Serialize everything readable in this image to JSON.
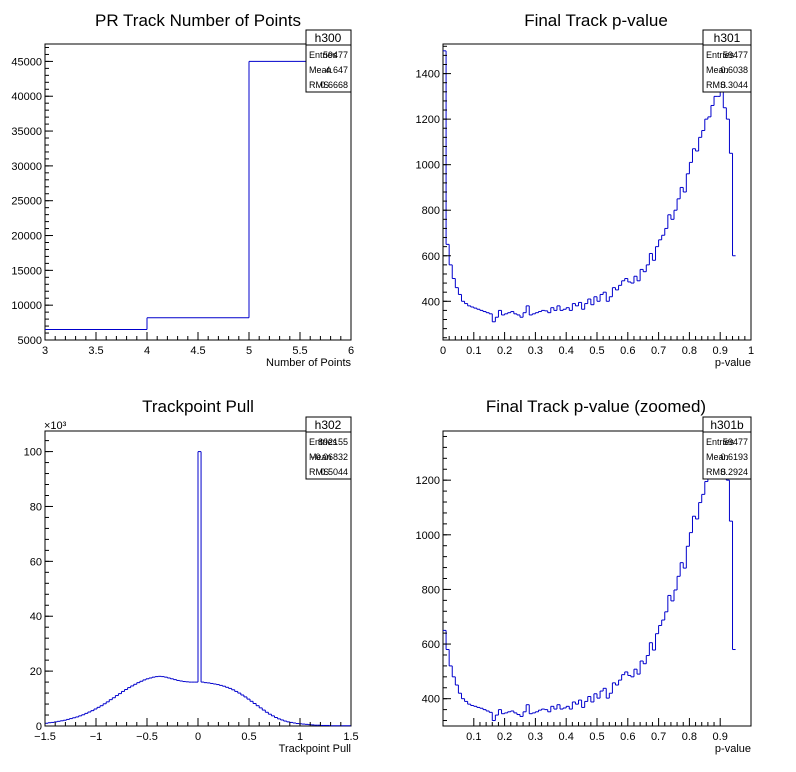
{
  "chart_data": [
    {
      "id": "h300",
      "type": "histogram",
      "title": "PR Track Number of Points",
      "xlabel": "Number of Points",
      "ylabel": "",
      "xlim": [
        3,
        6
      ],
      "ylim": [
        5000,
        47500
      ],
      "xticks": [
        {
          "v": 3,
          "t": "3"
        },
        {
          "v": 3.5,
          "t": "3.5"
        },
        {
          "v": 4,
          "t": "4"
        },
        {
          "v": 4.5,
          "t": "4.5"
        },
        {
          "v": 5,
          "t": "5"
        },
        {
          "v": 5.5,
          "t": "5.5"
        },
        {
          "v": 6,
          "t": "6"
        }
      ],
      "yticks": [
        {
          "v": 5000,
          "t": "5000"
        },
        {
          "v": 10000,
          "t": "10000"
        },
        {
          "v": 15000,
          "t": "15000"
        },
        {
          "v": 20000,
          "t": "20000"
        },
        {
          "v": 25000,
          "t": "25000"
        },
        {
          "v": 30000,
          "t": "30000"
        },
        {
          "v": 35000,
          "t": "35000"
        },
        {
          "v": 40000,
          "t": "40000"
        },
        {
          "v": 45000,
          "t": "45000"
        }
      ],
      "bin_edges": [
        3,
        4,
        5,
        6
      ],
      "values": [
        6500,
        8200,
        45000
      ],
      "stats": {
        "name": "h300",
        "entries": "59477",
        "mean": "4.647",
        "rms": "0.6668"
      },
      "exponent": "",
      "color": "#0000cc"
    },
    {
      "id": "h301",
      "type": "histogram",
      "title": "Final Track p-value",
      "xlabel": "p-value",
      "ylabel": "",
      "xlim": [
        0,
        1
      ],
      "ylim": [
        230,
        1530
      ],
      "xticks": [
        {
          "v": 0,
          "t": "0"
        },
        {
          "v": 0.1,
          "t": "0.1"
        },
        {
          "v": 0.2,
          "t": "0.2"
        },
        {
          "v": 0.3,
          "t": "0.3"
        },
        {
          "v": 0.4,
          "t": "0.4"
        },
        {
          "v": 0.5,
          "t": "0.5"
        },
        {
          "v": 0.6,
          "t": "0.6"
        },
        {
          "v": 0.7,
          "t": "0.7"
        },
        {
          "v": 0.8,
          "t": "0.8"
        },
        {
          "v": 0.9,
          "t": "0.9"
        },
        {
          "v": 1,
          "t": "1"
        }
      ],
      "yticks": [
        {
          "v": 400,
          "t": "400"
        },
        {
          "v": 600,
          "t": "600"
        },
        {
          "v": 800,
          "t": "800"
        },
        {
          "v": 1000,
          "t": "1000"
        },
        {
          "v": 1200,
          "t": "1200"
        },
        {
          "v": 1400,
          "t": "1400"
        }
      ],
      "bin_start": 0,
      "bin_width": 0.01,
      "values": [
        1500,
        650,
        560,
        500,
        460,
        430,
        400,
        390,
        380,
        375,
        370,
        365,
        360,
        355,
        350,
        345,
        310,
        330,
        360,
        340,
        345,
        350,
        355,
        345,
        340,
        330,
        350,
        380,
        340,
        345,
        350,
        355,
        360,
        358,
        350,
        372,
        360,
        380,
        360,
        365,
        372,
        360,
        390,
        380,
        395,
        365,
        390,
        410,
        385,
        420,
        400,
        430,
        440,
        400,
        420,
        460,
        450,
        470,
        490,
        500,
        485,
        480,
        510,
        490,
        540,
        530,
        560,
        610,
        580,
        640,
        670,
        690,
        720,
        780,
        760,
        800,
        850,
        900,
        880,
        960,
        1010,
        1070,
        1060,
        1120,
        1150,
        1200,
        1210,
        1260,
        1300,
        1300,
        1350,
        1250,
        1200,
        1050,
        600
      ],
      "stats": {
        "name": "h301",
        "entries": "59477",
        "mean": "0.6038",
        "rms": "0.3044"
      },
      "exponent": "",
      "color": "#0000cc"
    },
    {
      "id": "h302",
      "type": "histogram",
      "title": "Trackpoint Pull",
      "xlabel": "Trackpoint Pull",
      "ylabel": "",
      "xlim": [
        -1.5,
        1.5
      ],
      "ylim": [
        0,
        107.5
      ],
      "xticks": [
        {
          "v": -1.5,
          "t": "−1.5"
        },
        {
          "v": -1,
          "t": "−1"
        },
        {
          "v": -0.5,
          "t": "−0.5"
        },
        {
          "v": 0,
          "t": "0"
        },
        {
          "v": 0.5,
          "t": "0.5"
        },
        {
          "v": 1,
          "t": "1"
        },
        {
          "v": 1.5,
          "t": "1.5"
        }
      ],
      "yticks": [
        {
          "v": 0,
          "t": "0"
        },
        {
          "v": 20,
          "t": "20"
        },
        {
          "v": 40,
          "t": "40"
        },
        {
          "v": 60,
          "t": "60"
        },
        {
          "v": 80,
          "t": "80"
        },
        {
          "v": 100,
          "t": "100"
        }
      ],
      "bin_start": -1.5,
      "bin_width": 0.03,
      "values": [
        1.0,
        1.2,
        1.3,
        1.5,
        1.7,
        1.9,
        2.1,
        2.4,
        2.7,
        3.0,
        3.3,
        3.7,
        4.1,
        4.6,
        5.1,
        5.6,
        6.2,
        6.8,
        7.4,
        8.1,
        8.8,
        9.6,
        10.3,
        11.1,
        11.8,
        12.6,
        13.3,
        14.0,
        14.6,
        15.2,
        15.8,
        16.3,
        16.8,
        17.2,
        17.5,
        17.8,
        18.0,
        18.1,
        18.0,
        17.8,
        17.5,
        17.2,
        16.9,
        16.6,
        16.4,
        16.2,
        16.1,
        16.0,
        16.0,
        16.0,
        100.0,
        16.0,
        15.8,
        15.7,
        15.5,
        15.3,
        15.1,
        14.8,
        14.5,
        14.1,
        13.7,
        13.2,
        12.6,
        12.0,
        11.3,
        10.6,
        9.8,
        9.0,
        8.2,
        7.4,
        6.6,
        5.8,
        5.0,
        4.3,
        3.7,
        3.1,
        2.6,
        2.2,
        1.8,
        1.5,
        1.3,
        1.1,
        0.9,
        0.8,
        0.7,
        0.6,
        0.5,
        0.4,
        0.3,
        0.3,
        0.2,
        0.2,
        0.2,
        0.1,
        0.1,
        0.1,
        0.1,
        0.1,
        0.1,
        0.1
      ],
      "stats": {
        "name": "h302",
        "entries": "892155",
        "mean": "−0.06832",
        "rms": "0.5044"
      },
      "exponent": "×10³",
      "color": "#0000cc"
    },
    {
      "id": "h301b",
      "type": "histogram",
      "title": "Final Track p-value (zoomed)",
      "xlabel": "p-value",
      "ylabel": "",
      "xlim": [
        0,
        1
      ],
      "ylim": [
        300,
        1380
      ],
      "xticks": [
        {
          "v": 0.1,
          "t": "0.1"
        },
        {
          "v": 0.2,
          "t": "0.2"
        },
        {
          "v": 0.3,
          "t": "0.3"
        },
        {
          "v": 0.4,
          "t": "0.4"
        },
        {
          "v": 0.5,
          "t": "0.5"
        },
        {
          "v": 0.6,
          "t": "0.6"
        },
        {
          "v": 0.7,
          "t": "0.7"
        },
        {
          "v": 0.8,
          "t": "0.8"
        },
        {
          "v": 0.9,
          "t": "0.9"
        }
      ],
      "yticks": [
        {
          "v": 400,
          "t": "400"
        },
        {
          "v": 600,
          "t": "600"
        },
        {
          "v": 800,
          "t": "800"
        },
        {
          "v": 1000,
          "t": "1000"
        },
        {
          "v": 1200,
          "t": "1200"
        }
      ],
      "bin_start": 0,
      "bin_width": 0.01,
      "values": [
        650,
        580,
        520,
        480,
        450,
        420,
        400,
        390,
        380,
        375,
        372,
        368,
        365,
        360,
        355,
        350,
        320,
        340,
        360,
        345,
        348,
        352,
        355,
        348,
        342,
        335,
        352,
        378,
        345,
        348,
        352,
        358,
        362,
        360,
        352,
        372,
        362,
        378,
        362,
        366,
        372,
        362,
        388,
        380,
        395,
        368,
        390,
        408,
        388,
        418,
        402,
        428,
        438,
        402,
        420,
        458,
        450,
        468,
        488,
        498,
        485,
        480,
        508,
        490,
        538,
        528,
        558,
        605,
        578,
        638,
        668,
        688,
        718,
        778,
        758,
        798,
        848,
        898,
        878,
        958,
        1008,
        1068,
        1058,
        1118,
        1148,
        1195,
        1208,
        1255,
        1300,
        1300,
        1350,
        1250,
        1200,
        1050,
        580
      ],
      "stats": {
        "name": "h301b",
        "entries": "59477",
        "mean": "0.6193",
        "rms": "0.2924"
      },
      "exponent": "",
      "color": "#0000cc"
    }
  ]
}
